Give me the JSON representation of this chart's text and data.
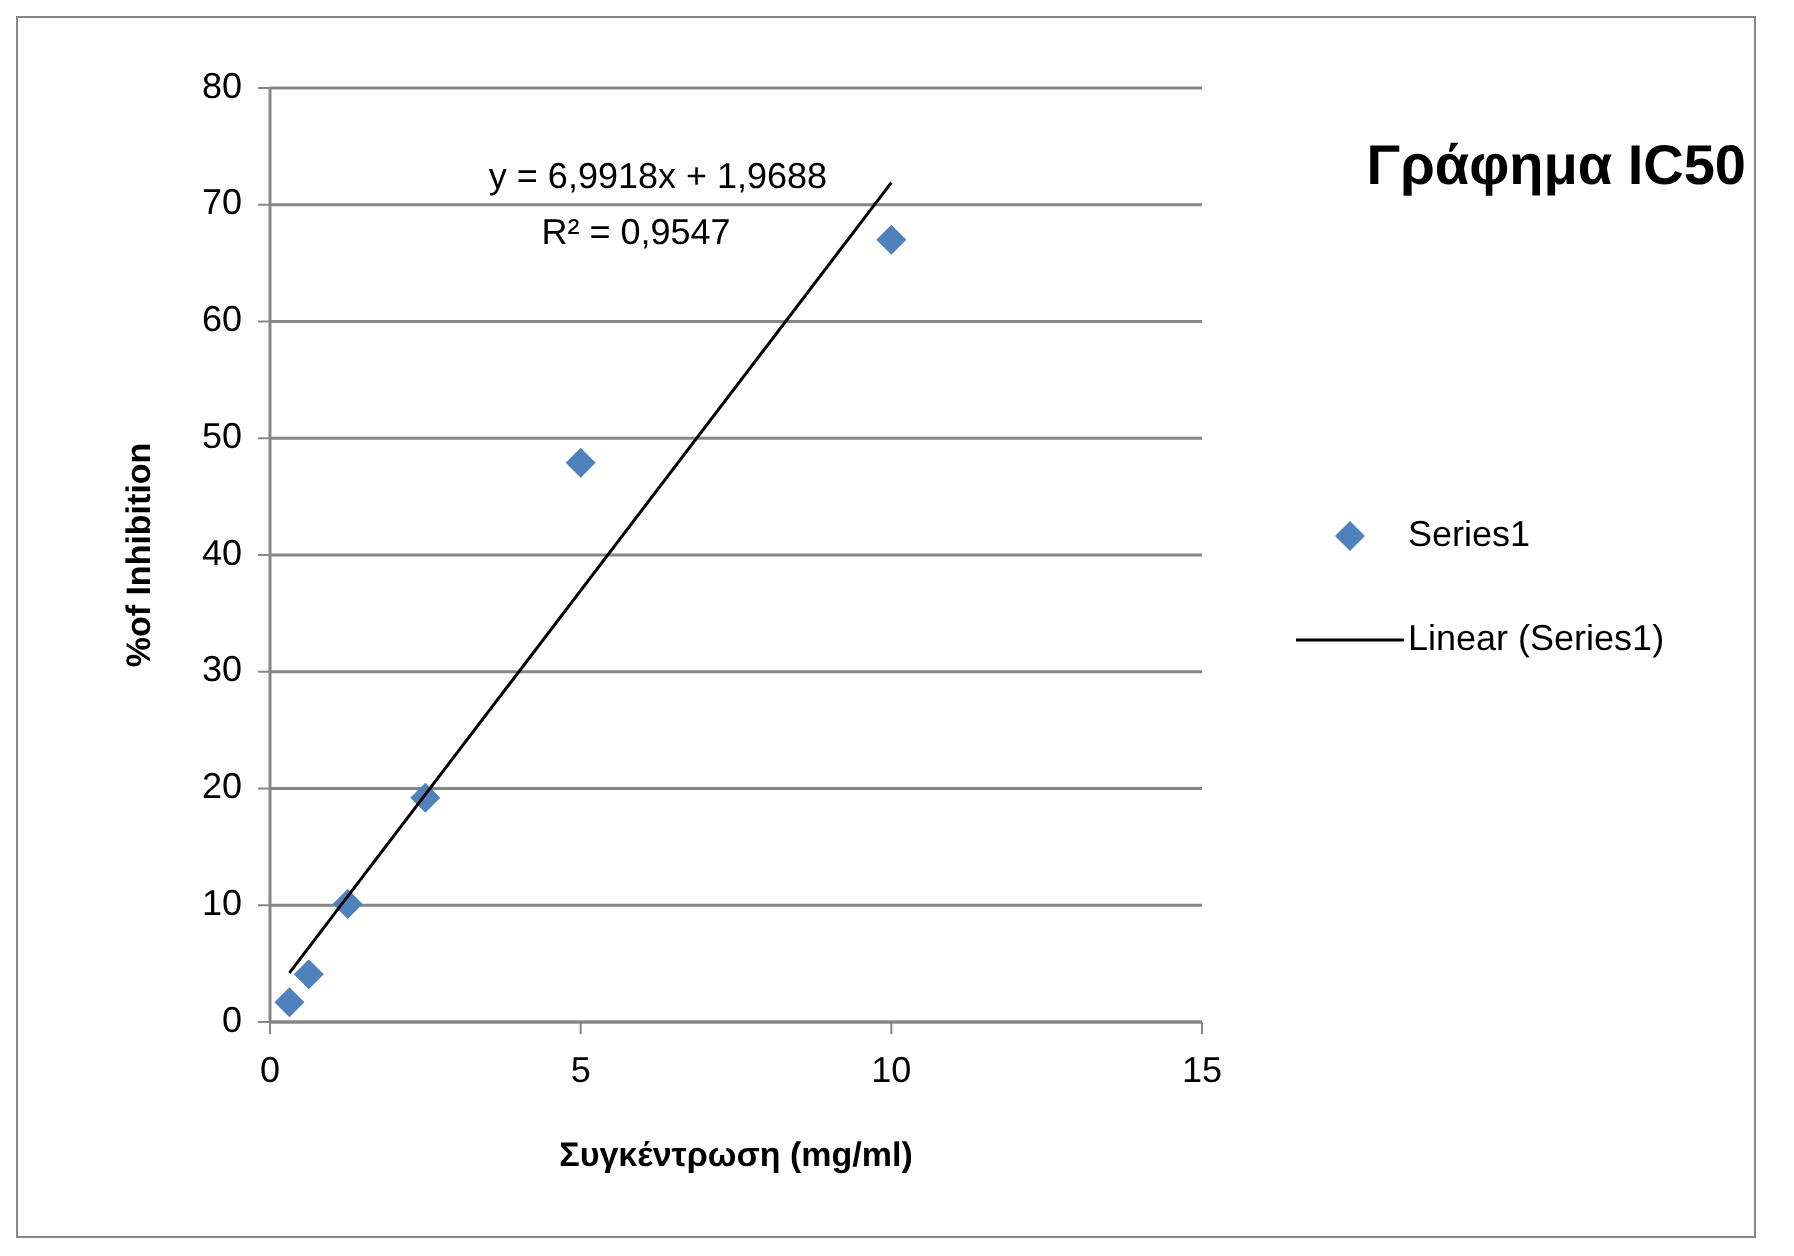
{
  "chart_data": {
    "type": "scatter",
    "title": "Γράφημα IC50",
    "xlabel": "Συγκέντρωση (mg/ml)",
    "ylabel": "%of Inhibition",
    "x": [
      0.3125,
      0.625,
      1.25,
      2.5,
      5,
      10
    ],
    "series": [
      {
        "name": "Series1",
        "color": "#4f81bd",
        "marker": "diamond",
        "values": [
          1.7,
          4.1,
          10.1,
          19.2,
          47.9,
          67
        ]
      },
      {
        "name": "Linear (Series1)",
        "type": "line",
        "color": "#000000",
        "marker": "none",
        "line_style": "solid",
        "x": [
          0.3125,
          10
        ],
        "values": [
          4.2,
          71.9
        ]
      }
    ],
    "xlim": [
      0,
      15
    ],
    "xticks": [
      0,
      5,
      10,
      15
    ],
    "ylim": [
      0,
      80
    ],
    "yticks": [
      0,
      10,
      20,
      30,
      40,
      50,
      60,
      70,
      80
    ],
    "grid": "y",
    "legend": "right",
    "annotations": [
      "y = 6,9918x + 1,9688",
      "R² = 0,9547"
    ]
  }
}
